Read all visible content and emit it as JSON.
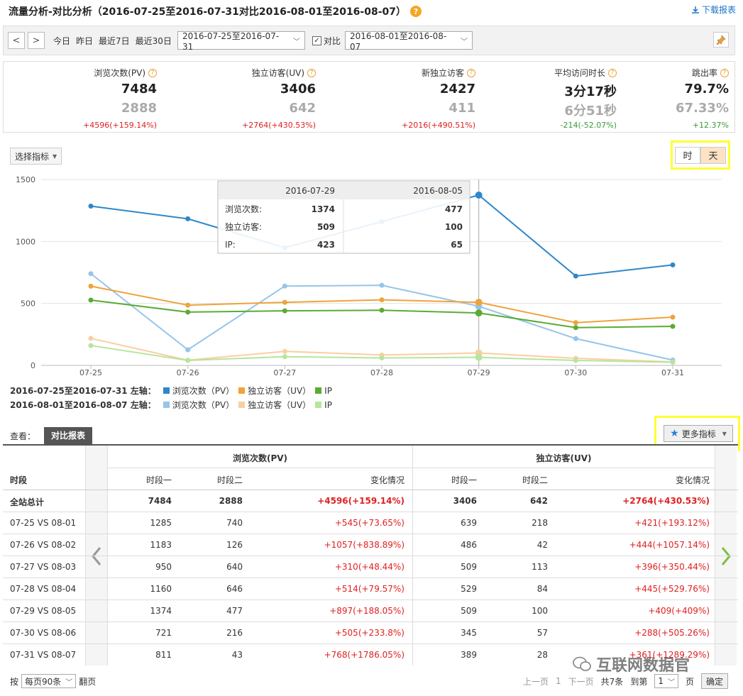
{
  "header": {
    "title": "流量分析-对比分析（2016-07-25至2016-07-31对比2016-08-01至2016-08-07）",
    "help": "?",
    "download": "下载报表"
  },
  "toolbar": {
    "prev": "<",
    "next": ">",
    "quick": [
      "今日",
      "昨日",
      "最近7日",
      "最近30日"
    ],
    "range1": "2016-07-25至2016-07-31",
    "compare_label": "对比",
    "compare_checked": true,
    "range2": "2016-08-01至2016-08-07"
  },
  "metrics": [
    {
      "label": "浏览次数(PV)",
      "v1": "7484",
      "v2": "2888",
      "change": "+4596(+159.14%)",
      "dir": "up"
    },
    {
      "label": "独立访客(UV)",
      "v1": "3406",
      "v2": "642",
      "change": "+2764(+430.53%)",
      "dir": "up"
    },
    {
      "label": "新独立访客",
      "v1": "2427",
      "v2": "411",
      "change": "+2016(+490.51%)",
      "dir": "up"
    },
    {
      "label": "平均访问时长",
      "v1": "3分17秒",
      "v2": "6分51秒",
      "change": "-214(-52.07%)",
      "dir": "down"
    },
    {
      "label": "跳出率",
      "v1": "79.7%",
      "v2": "67.33%",
      "change": "+12.37%",
      "dir": "down"
    }
  ],
  "controls": {
    "select_metric": "选择指标",
    "hour": "时",
    "day": "天"
  },
  "chart_data": {
    "type": "line",
    "categories": [
      "07-25",
      "07-26",
      "07-27",
      "07-28",
      "07-29",
      "07-30",
      "07-31"
    ],
    "ylim": [
      0,
      1500
    ],
    "yticks": [
      0,
      500,
      1000,
      1500
    ],
    "grid": true,
    "series": [
      {
        "name": "浏览次数（PV）",
        "period": 1,
        "color": "#2f87c9",
        "values": [
          1285,
          1183,
          950,
          1160,
          1374,
          721,
          811
        ]
      },
      {
        "name": "独立访客（UV）",
        "period": 1,
        "color": "#efa33a",
        "values": [
          639,
          486,
          509,
          529,
          509,
          345,
          389
        ]
      },
      {
        "name": "IP",
        "period": 1,
        "color": "#5aab35",
        "values": [
          527,
          430,
          440,
          445,
          423,
          305,
          315
        ]
      },
      {
        "name": "浏览次数（PV）",
        "period": 2,
        "color": "#95c5ea",
        "values": [
          740,
          126,
          640,
          646,
          477,
          216,
          43
        ]
      },
      {
        "name": "独立访客（UV）",
        "period": 2,
        "color": "#f8cfa0",
        "values": [
          218,
          42,
          113,
          84,
          100,
          57,
          28
        ]
      },
      {
        "name": "IP",
        "period": 2,
        "color": "#b6e59c",
        "values": [
          160,
          40,
          70,
          60,
          65,
          40,
          25
        ]
      }
    ],
    "tooltip": {
      "date1": "2016-07-29",
      "date2": "2016-08-05",
      "rows": [
        {
          "label": "浏览次数:",
          "v1": "1374",
          "v2": "477"
        },
        {
          "label": "独立访客:",
          "v1": "509",
          "v2": "100"
        },
        {
          "label": "IP:",
          "v1": "423",
          "v2": "65"
        }
      ]
    },
    "legend": [
      {
        "title": "2016-07-25至2016-07-31 左轴：",
        "items": [
          "浏览次数（PV）",
          "独立访客（UV）",
          "IP"
        ],
        "colors": [
          "#2f87c9",
          "#efa33a",
          "#5aab35"
        ]
      },
      {
        "title": "2016-08-01至2016-08-07 左轴：",
        "items": [
          "浏览次数（PV）",
          "独立访客（UV）",
          "IP"
        ],
        "colors": [
          "#95c5ea",
          "#f8cfa0",
          "#b6e59c"
        ]
      }
    ]
  },
  "view": {
    "label": "查看：",
    "tab": "对比报表",
    "more": "更多指标"
  },
  "table": {
    "group_pv": "浏览次数(PV)",
    "group_uv": "独立访客(UV)",
    "col_period": "时段",
    "col_p1": "时段一",
    "col_p2": "时段二",
    "col_change": "变化情况",
    "rows": [
      {
        "period": "全站总计",
        "pv1": "7484",
        "pv2": "2888",
        "pvc": "+4596(+159.14%)",
        "uv1": "3406",
        "uv2": "642",
        "uvc": "+2764(+430.53%)",
        "bold": true
      },
      {
        "period": "07-25 VS 08-01",
        "pv1": "1285",
        "pv2": "740",
        "pvc": "+545(+73.65%)",
        "uv1": "639",
        "uv2": "218",
        "uvc": "+421(+193.12%)"
      },
      {
        "period": "07-26 VS 08-02",
        "pv1": "1183",
        "pv2": "126",
        "pvc": "+1057(+838.89%)",
        "uv1": "486",
        "uv2": "42",
        "uvc": "+444(+1057.14%)"
      },
      {
        "period": "07-27 VS 08-03",
        "pv1": "950",
        "pv2": "640",
        "pvc": "+310(+48.44%)",
        "uv1": "509",
        "uv2": "113",
        "uvc": "+396(+350.44%)"
      },
      {
        "period": "07-28 VS 08-04",
        "pv1": "1160",
        "pv2": "646",
        "pvc": "+514(+79.57%)",
        "uv1": "529",
        "uv2": "84",
        "uvc": "+445(+529.76%)"
      },
      {
        "period": "07-29 VS 08-05",
        "pv1": "1374",
        "pv2": "477",
        "pvc": "+897(+188.05%)",
        "uv1": "509",
        "uv2": "100",
        "uvc": "+409(+409%)"
      },
      {
        "period": "07-30 VS 08-06",
        "pv1": "721",
        "pv2": "216",
        "pvc": "+505(+233.8%)",
        "uv1": "345",
        "uv2": "57",
        "uvc": "+288(+505.26%)"
      },
      {
        "period": "07-31 VS 08-07",
        "pv1": "811",
        "pv2": "43",
        "pvc": "+768(+1786.05%)",
        "uv1": "389",
        "uv2": "28",
        "uvc": "+361(+1289.29%)"
      }
    ]
  },
  "footer": {
    "by": "按",
    "per_page": "每页90条",
    "flip": "翻页",
    "prev_page": "上一页",
    "current": "1",
    "next_page": "下一页",
    "total": "共7条",
    "goto": "到第",
    "page_val": "1",
    "page_unit": "页",
    "confirm": "确定"
  },
  "watermark": "互联网数据官"
}
